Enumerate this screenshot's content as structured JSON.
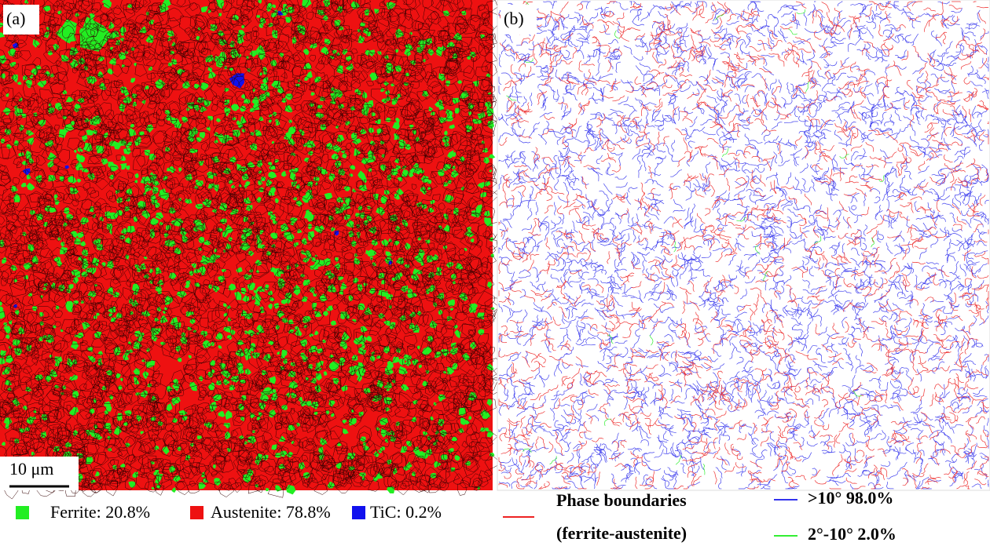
{
  "panels": [
    {
      "label": "(a)",
      "scale_bar": "10 μm"
    },
    {
      "label": "(b)"
    }
  ],
  "legend_a": [
    "Ferrite: 20.8%",
    "Austenite: 78.8%",
    "TiC: 0.2%"
  ],
  "legend_b": {
    "phase_boundaries": [
      "Phase boundaries",
      "(ferrite-austenite)"
    ],
    "high_angle": ">10° 98.0%",
    "low_angle": "2°-10° 2.0%"
  }
}
